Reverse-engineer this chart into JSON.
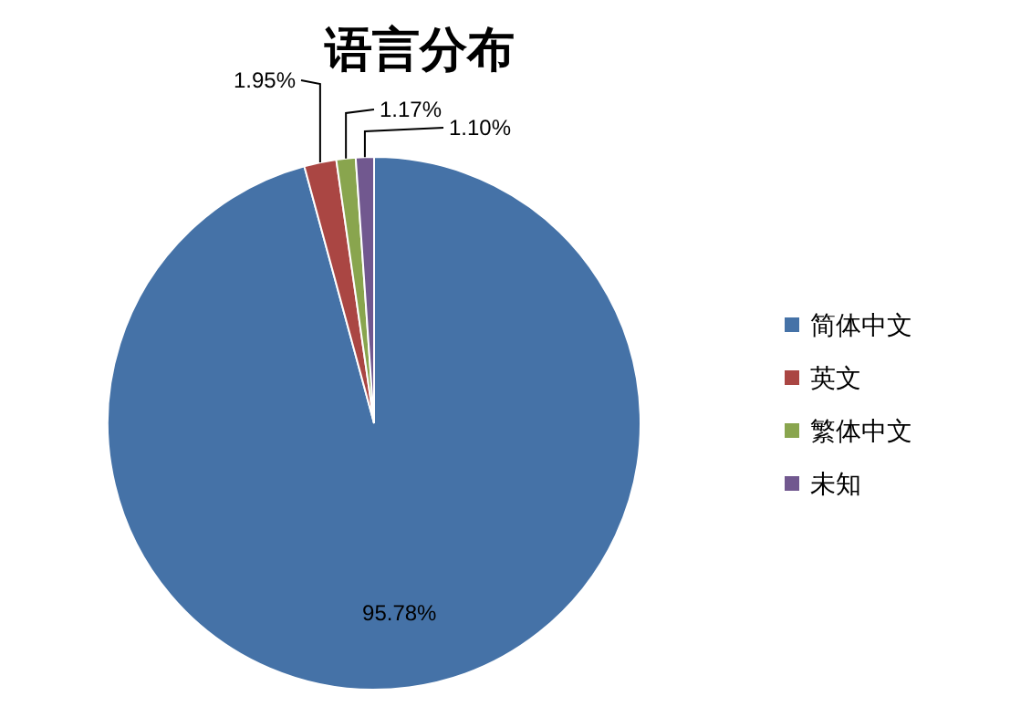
{
  "chart_data": {
    "type": "pie",
    "title": "语言分布",
    "categories": [
      "简体中文",
      "英文",
      "繁体中文",
      "未知"
    ],
    "values": [
      95.78,
      1.95,
      1.17,
      1.1
    ],
    "colors": [
      "#4572a7",
      "#aa4643",
      "#89a54e",
      "#71588f"
    ],
    "value_labels": [
      "95.78%",
      "1.95%",
      "1.17%",
      "1.10%"
    ],
    "legend": "right"
  }
}
